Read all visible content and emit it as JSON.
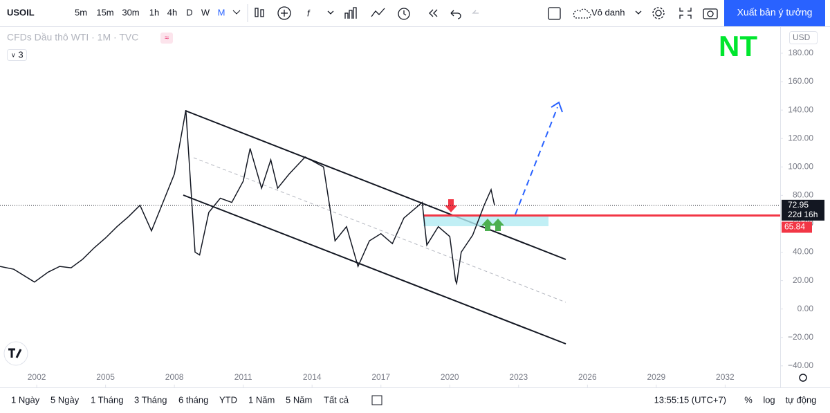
{
  "toolbar": {
    "symbol": "USOIL",
    "intervals": [
      "5m",
      "15m",
      "30m",
      "1h",
      "4h",
      "D",
      "W",
      "M"
    ],
    "active_interval": 7,
    "layout_name": "Vô danh",
    "publish_button": "Xuất bản ý tưởng"
  },
  "chart_data": {
    "type": "line",
    "title": "CFDs Dầu thô WTI · 1M · TVC",
    "indicator_count": "3",
    "currency": "USD",
    "watermark": "NT",
    "x": [
      2000.4,
      2001,
      2001.9,
      2002.5,
      2003,
      2003.5,
      2004,
      2004.5,
      2005,
      2005.5,
      2006,
      2006.5,
      2007,
      2007.5,
      2008,
      2008.5,
      2008.9,
      2009.1,
      2009.5,
      2010,
      2010.5,
      2011,
      2011.3,
      2011.8,
      2012.2,
      2012.5,
      2013,
      2013.7,
      2014.5,
      2015,
      2015.5,
      2016,
      2016.5,
      2017,
      2017.5,
      2018,
      2018.8,
      2019,
      2019.5,
      2020,
      2020.25,
      2020.3,
      2020.5,
      2021,
      2021.5,
      2021.8,
      2021.95
    ],
    "series": [
      {
        "color": "#131722",
        "values": [
          30,
          28,
          19,
          26,
          30,
          29,
          35,
          43,
          50,
          58,
          65,
          73,
          55,
          75,
          95,
          140,
          40,
          38,
          68,
          78,
          75,
          90,
          113,
          85,
          105,
          85,
          95,
          107,
          100,
          48,
          58,
          30,
          48,
          53,
          46,
          64,
          75,
          45,
          58,
          51,
          20,
          18,
          40,
          52,
          73,
          84,
          72.95
        ]
      }
    ],
    "xlim": [
      2000.4,
      2034.4
    ],
    "xticks": [
      2002,
      2005,
      2008,
      2011,
      2014,
      2017,
      2020,
      2023,
      2026,
      2029,
      2032
    ],
    "ylim": [
      -43,
      198
    ],
    "yticks": [
      {
        "value": -40,
        "label": "−40.00"
      },
      {
        "value": -20,
        "label": "−20.00"
      },
      {
        "value": 0,
        "label": "0.00"
      },
      {
        "value": 20,
        "label": "20.00"
      },
      {
        "value": 40,
        "label": "40.00"
      },
      {
        "value": 60,
        "label": "60.00"
      },
      {
        "value": 80,
        "label": "80.00"
      },
      {
        "value": 100,
        "label": "100.00"
      },
      {
        "value": 120,
        "label": "120.00"
      },
      {
        "value": 140,
        "label": "140.00"
      },
      {
        "value": 160,
        "label": "160.00"
      },
      {
        "value": 180,
        "label": "180.00"
      }
    ],
    "last_price": 72.95,
    "countdown": "22d 16h",
    "level": 65.84,
    "level_color": "#f23645",
    "log_scale": false
  },
  "bottom_bar": {
    "ranges": [
      "1 Ngày",
      "5 Ngày",
      "1 Tháng",
      "3 Tháng",
      "6 tháng",
      "YTD",
      "1 Năm",
      "5 Năm",
      "Tất cả"
    ],
    "clock": "13:55:15 (UTC+7)",
    "scale_options": [
      "%",
      "log",
      "tự động"
    ]
  }
}
